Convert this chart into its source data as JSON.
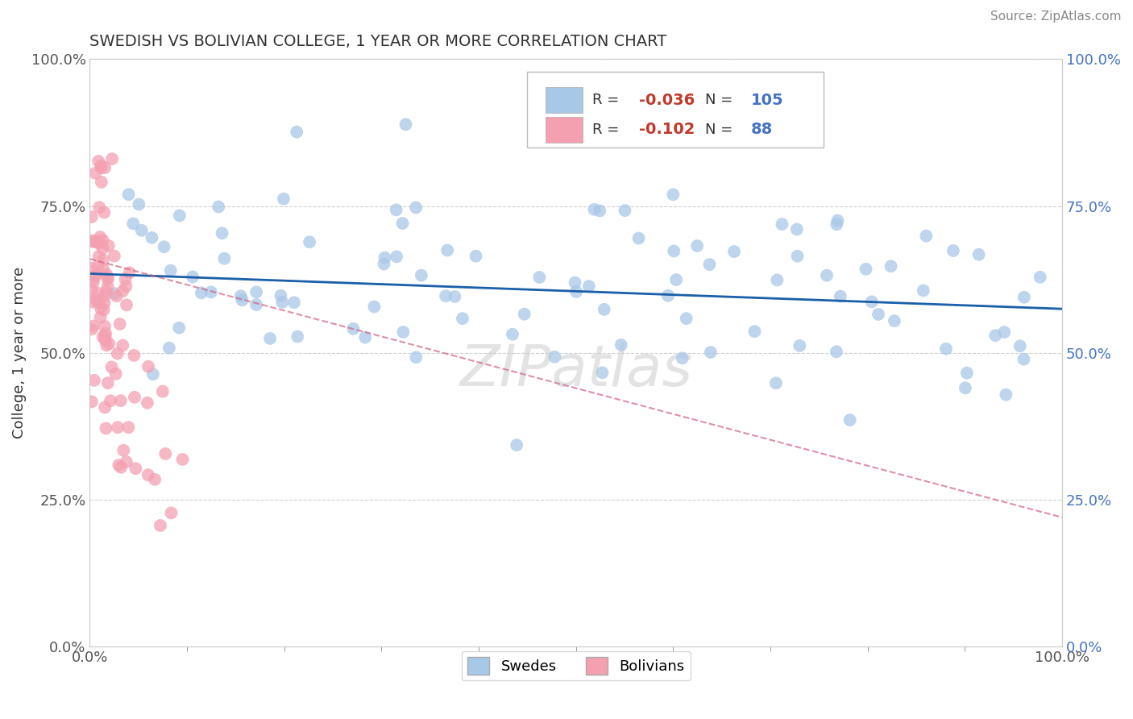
{
  "title": "SWEDISH VS BOLIVIAN COLLEGE, 1 YEAR OR MORE CORRELATION CHART",
  "source": "Source: ZipAtlas.com",
  "ylabel": "College, 1 year or more",
  "xlim": [
    0.0,
    1.0
  ],
  "ylim": [
    0.0,
    1.0
  ],
  "xtick_labels": [
    "0.0%",
    "100.0%"
  ],
  "ytick_labels": [
    "0.0%",
    "25.0%",
    "50.0%",
    "75.0%",
    "100.0%"
  ],
  "ytick_positions": [
    0.0,
    0.25,
    0.5,
    0.75,
    1.0
  ],
  "legend_r_swedes": "-0.036",
  "legend_n_swedes": "105",
  "legend_r_bolivians": "-0.102",
  "legend_n_bolivians": "88",
  "swede_color": "#a8c8e8",
  "bolivian_color": "#f4a0b0",
  "swede_line_color": "#1a5fa8",
  "bolivian_line_color": "#d06080",
  "watermark": "ZIPatlas",
  "background_color": "#ffffff",
  "swede_line_x0": 0.0,
  "swede_line_x1": 1.0,
  "swede_line_y0": 0.635,
  "swede_line_y1": 0.575,
  "bolivian_line_x0": 0.0,
  "bolivian_line_x1": 1.0,
  "bolivian_line_y0": 0.66,
  "bolivian_line_y1": 0.22
}
